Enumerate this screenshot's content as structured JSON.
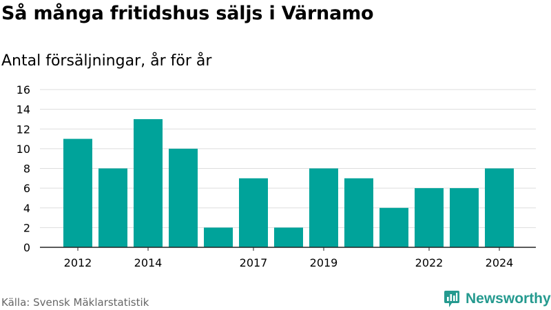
{
  "header": {
    "title": "Så många fritidshus säljs i Värnamo",
    "subtitle": "Antal försäljningar, år för år"
  },
  "footer": {
    "source": "Källa: Svensk Mäklarstatistik",
    "brand": "Newsworthy"
  },
  "colors": {
    "bar": "#00a39a",
    "grid": "#dddddd",
    "axis": "#222222",
    "brand": "#259a8f"
  },
  "icons": {
    "brand": "newsworthy-bar-chart-logo-icon"
  },
  "chart_data": {
    "type": "bar",
    "title": "Så många fritidshus säljs i Värnamo",
    "subtitle": "Antal försäljningar, år för år",
    "xlabel": "",
    "ylabel": "",
    "categories": [
      "2012",
      "2013",
      "2014",
      "2015",
      "2016",
      "2017",
      "2018",
      "2019",
      "2020",
      "2021",
      "2022",
      "2023",
      "2024"
    ],
    "values": [
      11,
      8,
      13,
      10,
      2,
      7,
      2,
      8,
      7,
      4,
      6,
      6,
      8
    ],
    "x_tick_labels": [
      "2012",
      "2014",
      "2017",
      "2019",
      "2022",
      "2024"
    ],
    "y_ticks": [
      0,
      2,
      4,
      6,
      8,
      10,
      12,
      14,
      16
    ],
    "ylim": [
      0,
      16
    ],
    "grid": true,
    "legend": "none"
  }
}
